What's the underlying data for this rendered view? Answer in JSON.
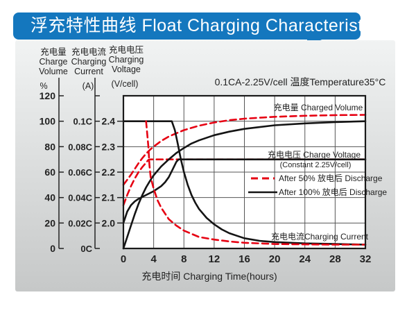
{
  "banner": {
    "title": "浮充特性曲线 Float Charging Characteristics",
    "color": "#1477be"
  },
  "condition": "0.1CA-2.25V/cell  温度Temperature35°C",
  "axis_headers": {
    "volume": {
      "zh": "充电量",
      "en1": "Charge",
      "en2": "Volume",
      "unit": "%"
    },
    "current": {
      "zh": "充电电流",
      "en1": "Charging",
      "en2": "Current",
      "unit": "(A)"
    },
    "voltage": {
      "zh": "充电电压",
      "en1": "Charging",
      "en2": "Voltage",
      "unit": "(V/cell)"
    }
  },
  "x_axis": {
    "title": "充电时间 Charging Time(hours)"
  },
  "chart_labels": {
    "charged_volume": "充电量 Charged Volume",
    "charge_voltage": "充电电压 Charge Voltage",
    "charge_voltage_sub": "(Constant 2.25V/cell)",
    "charging_current": "充电电流Charging Current"
  },
  "legend": {
    "after50": "After 50%  放电后 Discharge",
    "after100": "After 100%  放电后 Discharge"
  },
  "chart_data": {
    "type": "line",
    "title": "浮充特性曲线 Float Charging Characteristics",
    "condition": "0.1CA-2.25V/cell 温度Temperature35°C",
    "xlabel": "充电时间 Charging Time(hours)",
    "xlim": [
      0,
      32
    ],
    "x_ticks": [
      {
        "label": "0",
        "t": 0
      },
      {
        "label": "4",
        "t": 4
      },
      {
        "label": "8",
        "t": 8
      },
      {
        "label": "12",
        "t": 12
      },
      {
        "label": "16",
        "t": 16
      },
      {
        "label": "20",
        "t": 20
      },
      {
        "label": "24",
        "t": 24
      },
      {
        "label": "28",
        "t": 28
      },
      {
        "label": "32",
        "t": 32
      }
    ],
    "percent_ticks": [
      {
        "label": "0",
        "v": 0
      },
      {
        "label": "20",
        "v": 20
      },
      {
        "label": "40",
        "v": 40
      },
      {
        "label": "60",
        "v": 60
      },
      {
        "label": "80",
        "v": 80
      },
      {
        "label": "100",
        "v": 100
      },
      {
        "label": "120",
        "v": 120
      }
    ],
    "current_ticks": [
      {
        "label": "0C",
        "pct": 0
      },
      {
        "label": "0.02C",
        "pct": 20
      },
      {
        "label": "0.04C",
        "pct": 40
      },
      {
        "label": "0.06C",
        "pct": 60
      },
      {
        "label": "0.08C",
        "pct": 80
      },
      {
        "label": "0.1C",
        "pct": 100
      }
    ],
    "voltage_ticks": [
      {
        "label": "2.0",
        "v": 2.0
      },
      {
        "label": "2.1",
        "v": 2.1
      },
      {
        "label": "2.2",
        "v": 2.2
      },
      {
        "label": "2.3",
        "v": 2.3
      },
      {
        "label": "2.4",
        "v": 2.4
      }
    ],
    "colors": {
      "red": "#e60012",
      "black": "#141414"
    },
    "series": [
      {
        "name": "charged-volume-after-50-discharge",
        "axis": "percent",
        "color": "#e60012",
        "dashed": true,
        "points": [
          [
            0,
            50
          ],
          [
            0.5,
            54
          ],
          [
            1,
            58
          ],
          [
            1.5,
            62.5
          ],
          [
            2,
            67
          ],
          [
            2.5,
            71
          ],
          [
            3,
            74.5
          ],
          [
            3.5,
            77.5
          ],
          [
            4,
            80
          ],
          [
            5,
            84.5
          ],
          [
            6,
            88
          ],
          [
            7,
            90.5
          ],
          [
            8,
            93
          ],
          [
            10,
            96.5
          ],
          [
            12,
            99
          ],
          [
            14,
            100.8
          ],
          [
            16,
            102
          ],
          [
            20,
            103.5
          ],
          [
            24,
            104.3
          ],
          [
            28,
            104.8
          ],
          [
            32,
            105
          ]
        ]
      },
      {
        "name": "charge-voltage-after-50-discharge",
        "axis": "voltage",
        "color": "#e60012",
        "dashed": true,
        "points": [
          [
            0,
            2.07
          ],
          [
            0.5,
            2.11
          ],
          [
            1,
            2.145
          ],
          [
            1.5,
            2.175
          ],
          [
            2,
            2.2
          ],
          [
            2.5,
            2.22
          ],
          [
            3,
            2.237
          ],
          [
            3.3,
            2.248
          ],
          [
            3.6,
            2.25
          ],
          [
            32,
            2.25
          ]
        ]
      },
      {
        "name": "charged-volume-after-100-discharge",
        "axis": "percent",
        "color": "#141414",
        "dashed": false,
        "points": [
          [
            0,
            0
          ],
          [
            0.5,
            9
          ],
          [
            1,
            18
          ],
          [
            1.5,
            27
          ],
          [
            2,
            35
          ],
          [
            2.5,
            42
          ],
          [
            3,
            48
          ],
          [
            3.5,
            53
          ],
          [
            4,
            57.5
          ],
          [
            5,
            64.5
          ],
          [
            6,
            70
          ],
          [
            7,
            75
          ],
          [
            8,
            79
          ],
          [
            9,
            82.5
          ],
          [
            10,
            85
          ],
          [
            12,
            89
          ],
          [
            14,
            91.8
          ],
          [
            16,
            94
          ],
          [
            20,
            96.8
          ],
          [
            24,
            98.3
          ],
          [
            28,
            99.3
          ],
          [
            32,
            100
          ]
        ]
      },
      {
        "name": "charge-voltage-after-100-discharge",
        "axis": "voltage",
        "color": "#141414",
        "dashed": false,
        "points": [
          [
            0,
            2.0
          ],
          [
            0.5,
            2.045
          ],
          [
            1,
            2.07
          ],
          [
            1.5,
            2.085
          ],
          [
            2,
            2.095
          ],
          [
            3,
            2.11
          ],
          [
            4,
            2.125
          ],
          [
            5,
            2.145
          ],
          [
            5.5,
            2.16
          ],
          [
            6,
            2.18
          ],
          [
            6.5,
            2.21
          ],
          [
            7,
            2.24
          ],
          [
            7.3,
            2.25
          ],
          [
            32,
            2.25
          ]
        ]
      },
      {
        "name": "charging-current-after-100-discharge",
        "axis": "current",
        "color": "#141414",
        "dashed": false,
        "points": [
          [
            0,
            0.1
          ],
          [
            6.4,
            0.1
          ],
          [
            6.8,
            0.093
          ],
          [
            7.2,
            0.082
          ],
          [
            7.6,
            0.07
          ],
          [
            8,
            0.06
          ],
          [
            8.5,
            0.05
          ],
          [
            9,
            0.042
          ],
          [
            9.5,
            0.036
          ],
          [
            10,
            0.031
          ],
          [
            11,
            0.024
          ],
          [
            12,
            0.019
          ],
          [
            13,
            0.015
          ],
          [
            14,
            0.012
          ],
          [
            15,
            0.01
          ],
          [
            16,
            0.008
          ],
          [
            18,
            0.006
          ],
          [
            20,
            0.005
          ],
          [
            24,
            0.004
          ],
          [
            28,
            0.0035
          ],
          [
            32,
            0.003
          ]
        ]
      },
      {
        "name": "charging-current-after-50-discharge",
        "axis": "current",
        "color": "#e60012",
        "dashed": true,
        "points": [
          [
            3.0,
            0.1
          ],
          [
            3.3,
            0.08
          ],
          [
            3.45,
            0.065
          ],
          [
            3.6,
            0.056
          ],
          [
            4,
            0.047
          ],
          [
            4.5,
            0.038
          ],
          [
            5,
            0.032
          ],
          [
            6,
            0.023
          ],
          [
            7,
            0.018
          ],
          [
            8,
            0.014
          ],
          [
            10,
            0.009
          ],
          [
            12,
            0.007
          ],
          [
            14,
            0.0055
          ],
          [
            16,
            0.0045
          ],
          [
            20,
            0.0035
          ],
          [
            24,
            0.0032
          ],
          [
            28,
            0.003
          ],
          [
            32,
            0.003
          ]
        ]
      }
    ],
    "legend": [
      {
        "label": "After 50%  放电后 Discharge",
        "style": "red-dashed"
      },
      {
        "label": "After 100%  放电后 Discharge",
        "style": "black-solid"
      }
    ],
    "grid": true,
    "legend_position": "inside-right"
  }
}
